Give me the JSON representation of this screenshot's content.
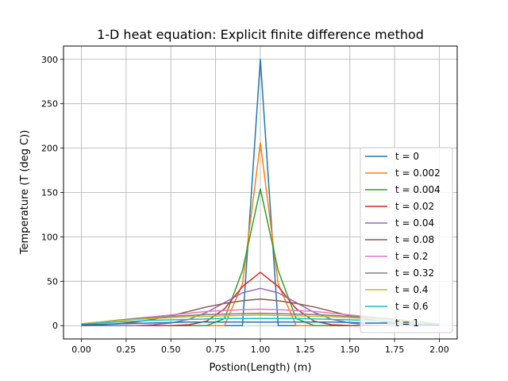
{
  "chart_data": {
    "type": "line",
    "title": "1-D heat equation: Explicit finite difference method",
    "xlabel": "Postion(Length) (m)",
    "ylabel": "Temperature (T (deg C))",
    "xlim": [
      -0.1,
      2.1
    ],
    "ylim": [
      -15,
      315
    ],
    "xticks": [
      0.0,
      0.25,
      0.5,
      0.75,
      1.0,
      1.25,
      1.5,
      1.75,
      2.0
    ],
    "xtick_labels": [
      "0.00",
      "0.25",
      "0.50",
      "0.75",
      "1.00",
      "1.25",
      "1.50",
      "1.75",
      "2.00"
    ],
    "yticks": [
      0,
      50,
      100,
      150,
      200,
      250,
      300
    ],
    "ytick_labels": [
      "0",
      "50",
      "100",
      "150",
      "200",
      "250",
      "300"
    ],
    "grid": true,
    "legend_position": "lower-right",
    "x": [
      0.0,
      0.1,
      0.2,
      0.3,
      0.4,
      0.5,
      0.6,
      0.7,
      0.8,
      0.9,
      1.0,
      1.1,
      1.2,
      1.3,
      1.4,
      1.5,
      1.6,
      1.7,
      1.8,
      1.9,
      2.0
    ],
    "series": [
      {
        "name": "t = 0",
        "color": "#1f77b4",
        "values": [
          0,
          0,
          0,
          0,
          0,
          0,
          0,
          0,
          0,
          0,
          300,
          0,
          0,
          0,
          0,
          0,
          0,
          0,
          0,
          0,
          0
        ]
      },
      {
        "name": "t = 0.002",
        "color": "#ff7f0e",
        "values": [
          0,
          0,
          0,
          0,
          0,
          0,
          0,
          0,
          0,
          47,
          206,
          47,
          0,
          0,
          0,
          0,
          0,
          0,
          0,
          0,
          0
        ]
      },
      {
        "name": "t = 0.004",
        "color": "#2ca02c",
        "values": [
          0,
          0,
          0,
          0,
          0,
          0,
          0,
          0,
          8,
          62,
          154,
          62,
          8,
          0,
          0,
          0,
          0,
          0,
          0,
          0,
          0
        ]
      },
      {
        "name": "t = 0.02",
        "color": "#d62728",
        "values": [
          0,
          0,
          0,
          0,
          0,
          0,
          1,
          5,
          19,
          44,
          60,
          44,
          19,
          5,
          1,
          0,
          0,
          0,
          0,
          0,
          0
        ]
      },
      {
        "name": "t = 0.04",
        "color": "#9467bd",
        "values": [
          0,
          0,
          0,
          0,
          1,
          3,
          7,
          15,
          26,
          37,
          42,
          37,
          26,
          15,
          7,
          3,
          1,
          0,
          0,
          0,
          0
        ]
      },
      {
        "name": "t = 0.08",
        "color": "#8c564b",
        "values": [
          0,
          1,
          2,
          4,
          7,
          11,
          16,
          21,
          25,
          28,
          30,
          28,
          25,
          21,
          16,
          11,
          7,
          4,
          2,
          1,
          0
        ]
      },
      {
        "name": "t = 0.2",
        "color": "#e377c2",
        "values": [
          2,
          4,
          6,
          8,
          10,
          12,
          14,
          16,
          17,
          18,
          18.5,
          18,
          17,
          16,
          14,
          12,
          10,
          8,
          6,
          4,
          2
        ]
      },
      {
        "name": "t = 0.32",
        "color": "#7f7f7f",
        "values": [
          2,
          4,
          6,
          8,
          9,
          10.5,
          11.5,
          12.5,
          13,
          13.5,
          14,
          13.5,
          13,
          12.5,
          11.5,
          10.5,
          9,
          8,
          6,
          4,
          2
        ]
      },
      {
        "name": "t = 0.4",
        "color": "#bcbd22",
        "values": [
          2,
          4,
          5.5,
          7,
          8,
          9,
          10,
          10.5,
          11,
          11.5,
          12,
          11.5,
          11,
          10.5,
          10,
          9,
          8,
          7,
          5.5,
          4,
          2
        ]
      },
      {
        "name": "t = 0.6",
        "color": "#17becf",
        "values": [
          1.5,
          3,
          4,
          5,
          6,
          6.5,
          7,
          7.5,
          8,
          8,
          8,
          8,
          8,
          7.5,
          7,
          6.5,
          6,
          5,
          4,
          3,
          1.5
        ]
      },
      {
        "name": "t = 1",
        "color": "#1f77b4",
        "values": [
          1,
          1.5,
          2,
          2.5,
          3,
          3.5,
          4,
          4,
          4,
          4,
          4,
          4,
          4,
          4,
          4,
          3.5,
          3,
          2.5,
          2,
          1.5,
          1
        ]
      }
    ]
  }
}
